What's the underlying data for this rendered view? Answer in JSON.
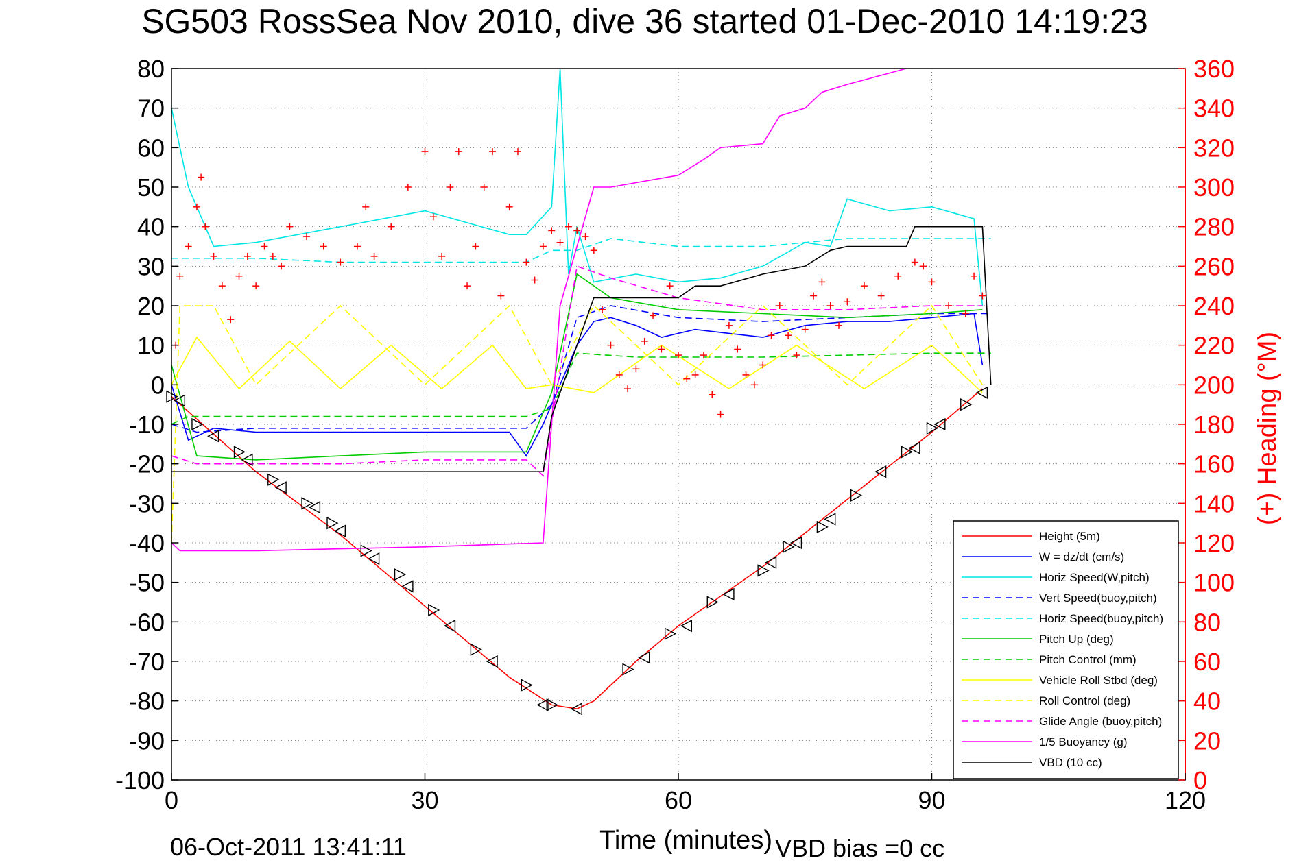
{
  "chart_data": {
    "type": "line",
    "title": "SG503 RossSea Nov 2010, dive 36 started 01-Dec-2010 14:19:23",
    "xlabel": "Time (minutes)",
    "ylabel_right": "(+) Heading (°M)",
    "footer_date": "06-Oct-2011 13:41:11",
    "footer_bias": "VBD bias =0 cc",
    "xlim": [
      0,
      120
    ],
    "ylim": [
      -100,
      80
    ],
    "ylim_right": [
      0,
      360
    ],
    "xticks": [
      0,
      30,
      60,
      90,
      120
    ],
    "yticks": [
      80,
      70,
      60,
      50,
      40,
      30,
      20,
      10,
      0,
      -10,
      -20,
      -30,
      -40,
      -50,
      -60,
      -70,
      -80,
      -90,
      -100
    ],
    "yticks_right": [
      360,
      340,
      320,
      300,
      280,
      260,
      240,
      220,
      200,
      180,
      160,
      140,
      120,
      100,
      80,
      60,
      40,
      20,
      0
    ],
    "grid": true,
    "legend_position": "bottom-right",
    "series": [
      {
        "name": "Height (5m)",
        "color": "#ff0000",
        "style": "solid",
        "x": [
          0,
          10,
          20,
          30,
          40,
          45,
          48,
          50,
          55,
          60,
          70,
          80,
          90,
          96
        ],
        "y": [
          -3,
          -22,
          -38,
          -56,
          -74,
          -81,
          -82,
          -80,
          -70,
          -61,
          -46,
          -29,
          -12,
          -1
        ]
      },
      {
        "name": "W = dz/dt (cm/s)",
        "color": "#0000ff",
        "style": "solid",
        "x": [
          0,
          2,
          5,
          10,
          20,
          30,
          40,
          42,
          44,
          46,
          48,
          50,
          52,
          55,
          58,
          62,
          66,
          70,
          75,
          80,
          85,
          90,
          95,
          96
        ],
        "y": [
          0,
          -14,
          -11,
          -12,
          -12,
          -12,
          -12,
          -18,
          -10,
          0,
          10,
          16,
          17,
          15,
          12,
          14,
          13,
          12,
          15,
          16,
          16,
          17,
          18,
          5
        ]
      },
      {
        "name": "Horiz Speed(W,pitch)",
        "color": "#00e5e5",
        "style": "solid",
        "x": [
          0,
          2,
          5,
          10,
          20,
          30,
          40,
          42,
          45,
          46,
          47,
          48,
          50,
          55,
          60,
          65,
          70,
          75,
          78,
          80,
          85,
          90,
          95,
          96
        ],
        "y": [
          70,
          50,
          35,
          36,
          40,
          44,
          38,
          38,
          45,
          80,
          28,
          40,
          26,
          28,
          26,
          27,
          30,
          36,
          35,
          47,
          44,
          45,
          42,
          20
        ]
      },
      {
        "name": "Vert Speed(buoy,pitch)",
        "color": "#0000ff",
        "style": "dashed",
        "x": [
          0,
          3,
          10,
          20,
          30,
          42,
          45,
          48,
          52,
          60,
          70,
          80,
          90,
          97
        ],
        "y": [
          -10,
          -12,
          -11,
          -11,
          -11,
          -11,
          -5,
          17,
          20,
          17,
          16,
          17,
          18,
          18
        ]
      },
      {
        "name": "Horiz Speed(buoy,pitch)",
        "color": "#00e5e5",
        "style": "dashed",
        "x": [
          0,
          5,
          10,
          20,
          30,
          42,
          45,
          48,
          52,
          60,
          70,
          80,
          90,
          97
        ],
        "y": [
          32,
          32,
          32,
          31,
          31,
          31,
          34,
          34,
          37,
          35,
          35,
          37,
          37,
          37
        ]
      },
      {
        "name": "Pitch Up (deg)",
        "color": "#00cc00",
        "style": "solid",
        "x": [
          0,
          3,
          10,
          20,
          30,
          42,
          45,
          46,
          48,
          52,
          60,
          70,
          80,
          90,
          96
        ],
        "y": [
          5,
          -18,
          -19,
          -18,
          -17,
          -17,
          -2,
          8,
          28,
          22,
          19,
          18,
          17,
          18,
          19
        ]
      },
      {
        "name": "Pitch Control (mm)",
        "color": "#00cc00",
        "style": "dashed",
        "x": [
          0,
          2,
          10,
          20,
          30,
          42,
          45,
          48,
          55,
          70,
          90,
          97
        ],
        "y": [
          -10,
          -8,
          -8,
          -8,
          -8,
          -8,
          -6,
          8,
          7,
          7,
          8,
          8
        ]
      },
      {
        "name": "Vehicle Roll Stbd (deg)",
        "color": "#ffff00",
        "style": "solid",
        "x": [
          0,
          3,
          8,
          14,
          20,
          26,
          32,
          38,
          42,
          45,
          50,
          58,
          66,
          74,
          82,
          90,
          96
        ],
        "y": [
          0,
          12,
          -1,
          11,
          -1,
          10,
          -1,
          10,
          -1,
          0,
          -2,
          10,
          -1,
          10,
          -1,
          10,
          -2
        ]
      },
      {
        "name": "Roll Control (deg)",
        "color": "#ffff00",
        "style": "dashed",
        "x": [
          0,
          1,
          5,
          10,
          20,
          30,
          40,
          45,
          50,
          60,
          70,
          80,
          90,
          96
        ],
        "y": [
          -40,
          20,
          20,
          0,
          20,
          0,
          20,
          0,
          20,
          0,
          20,
          0,
          20,
          0
        ]
      },
      {
        "name": "Glide Angle (buoy,pitch)",
        "color": "#ff00ff",
        "style": "dashed",
        "x": [
          0,
          3,
          10,
          20,
          30,
          42,
          44,
          48,
          52,
          60,
          70,
          80,
          90,
          96
        ],
        "y": [
          -18,
          -20,
          -20,
          -20,
          -19,
          -19,
          -23,
          30,
          27,
          22,
          19,
          19,
          20,
          20
        ]
      },
      {
        "name": "1/5 Buoyancy (g)",
        "color": "#ff00ff",
        "style": "solid",
        "x": [
          0,
          1,
          10,
          20,
          30,
          44,
          46,
          50,
          52,
          60,
          63,
          65,
          70,
          72,
          75,
          77,
          80,
          87
        ],
        "y": [
          -40,
          -42,
          -42,
          -41.5,
          -41,
          -40,
          20,
          50,
          50,
          53,
          57,
          60,
          61,
          68,
          70,
          74,
          76,
          80
        ]
      },
      {
        "name": "VBD (10 cc)",
        "color": "#000000",
        "style": "solid",
        "x": [
          0,
          1,
          44,
          45,
          50,
          55,
          60,
          62,
          65,
          70,
          75,
          78,
          80,
          87,
          88,
          96,
          97
        ],
        "y": [
          -22,
          -22,
          -22,
          -8,
          22,
          22,
          22,
          25,
          25,
          28,
          30,
          34,
          35,
          35,
          40,
          40,
          0
        ]
      }
    ],
    "heading_marker": {
      "symbol": "+",
      "color": "#ff0000",
      "x": [
        0.5,
        1,
        2,
        3,
        3.5,
        4,
        5,
        6,
        7,
        8,
        9,
        10,
        11,
        12,
        13,
        14,
        16,
        18,
        20,
        22,
        23,
        24,
        26,
        28,
        30,
        31,
        32,
        33,
        34,
        35,
        36,
        37,
        38,
        39,
        40,
        41,
        42,
        43,
        44,
        45,
        46,
        47,
        48,
        49,
        50,
        51,
        52,
        53,
        54,
        55,
        56,
        57,
        58,
        59,
        60,
        61,
        62,
        63,
        64,
        65,
        66,
        67,
        68,
        69,
        70,
        71,
        72,
        73,
        74,
        75,
        76,
        77,
        78,
        79,
        80,
        82,
        84,
        86,
        88,
        89,
        90,
        92,
        94,
        95,
        96
      ],
      "y": [
        220,
        255,
        270,
        290,
        305,
        280,
        265,
        250,
        233,
        255,
        265,
        250,
        270,
        265,
        260,
        280,
        275,
        270,
        262,
        270,
        290,
        265,
        280,
        300,
        318,
        285,
        265,
        300,
        318,
        250,
        270,
        300,
        318,
        245,
        290,
        318,
        262,
        253,
        270,
        278,
        272,
        280,
        278,
        275,
        268,
        238,
        220,
        205,
        198,
        208,
        222,
        235,
        218,
        250,
        215,
        203,
        205,
        215,
        195,
        185,
        230,
        218,
        205,
        200,
        210,
        225,
        240,
        225,
        215,
        228,
        245,
        252,
        240,
        230,
        242,
        250,
        245,
        255,
        262,
        260,
        252,
        240,
        236,
        255,
        245
      ]
    },
    "triangle_markers": {
      "symbol": "triangle",
      "color": "#000000",
      "x": [
        0,
        1,
        3,
        5,
        8,
        9,
        12,
        13,
        16,
        17,
        19,
        20,
        23,
        24,
        27,
        28,
        31,
        33,
        36,
        38,
        42,
        44,
        45,
        48,
        54,
        56,
        59,
        61,
        64,
        66,
        70,
        71,
        73,
        74,
        77,
        78,
        81,
        84,
        87,
        88,
        90,
        91,
        94,
        96
      ],
      "y": [
        -3,
        -4,
        -10,
        -13,
        -17,
        -19,
        -24,
        -26,
        -30,
        -31,
        -35,
        -37,
        -42,
        -44,
        -48,
        -51,
        -57,
        -61,
        -67,
        -70,
        -76,
        -81,
        -81,
        -82,
        -72,
        -69,
        -63,
        -61,
        -55,
        -53,
        -47,
        -45,
        -41,
        -40,
        -36,
        -34,
        -28,
        -22,
        -17,
        -16,
        -11,
        -10,
        -5,
        -2
      ]
    }
  },
  "legend_entries": [
    {
      "label": "Height (5m)",
      "color": "#ff0000",
      "style": "solid"
    },
    {
      "label": "W = dz/dt (cm/s)",
      "color": "#0000ff",
      "style": "solid"
    },
    {
      "label": "Horiz Speed(W,pitch)",
      "color": "#00e5e5",
      "style": "solid"
    },
    {
      "label": "Vert Speed(buoy,pitch)",
      "color": "#0000ff",
      "style": "dashed"
    },
    {
      "label": "Horiz Speed(buoy,pitch)",
      "color": "#00e5e5",
      "style": "dashed"
    },
    {
      "label": "Pitch Up (deg)",
      "color": "#00cc00",
      "style": "solid"
    },
    {
      "label": "Pitch Control (mm)",
      "color": "#00cc00",
      "style": "dashed"
    },
    {
      "label": "Vehicle Roll Stbd (deg)",
      "color": "#ffff00",
      "style": "solid"
    },
    {
      "label": "Roll Control (deg)",
      "color": "#ffff00",
      "style": "dashed"
    },
    {
      "label": "Glide Angle (buoy,pitch)",
      "color": "#ff00ff",
      "style": "dashed"
    },
    {
      "label": "1/5 Buoyancy (g)",
      "color": "#ff00ff",
      "style": "solid"
    },
    {
      "label": "VBD (10 cc)",
      "color": "#000000",
      "style": "solid"
    }
  ],
  "colors": {
    "axis": "#000000",
    "right_axis": "#ff0000",
    "grid": "#7f7f7f"
  }
}
